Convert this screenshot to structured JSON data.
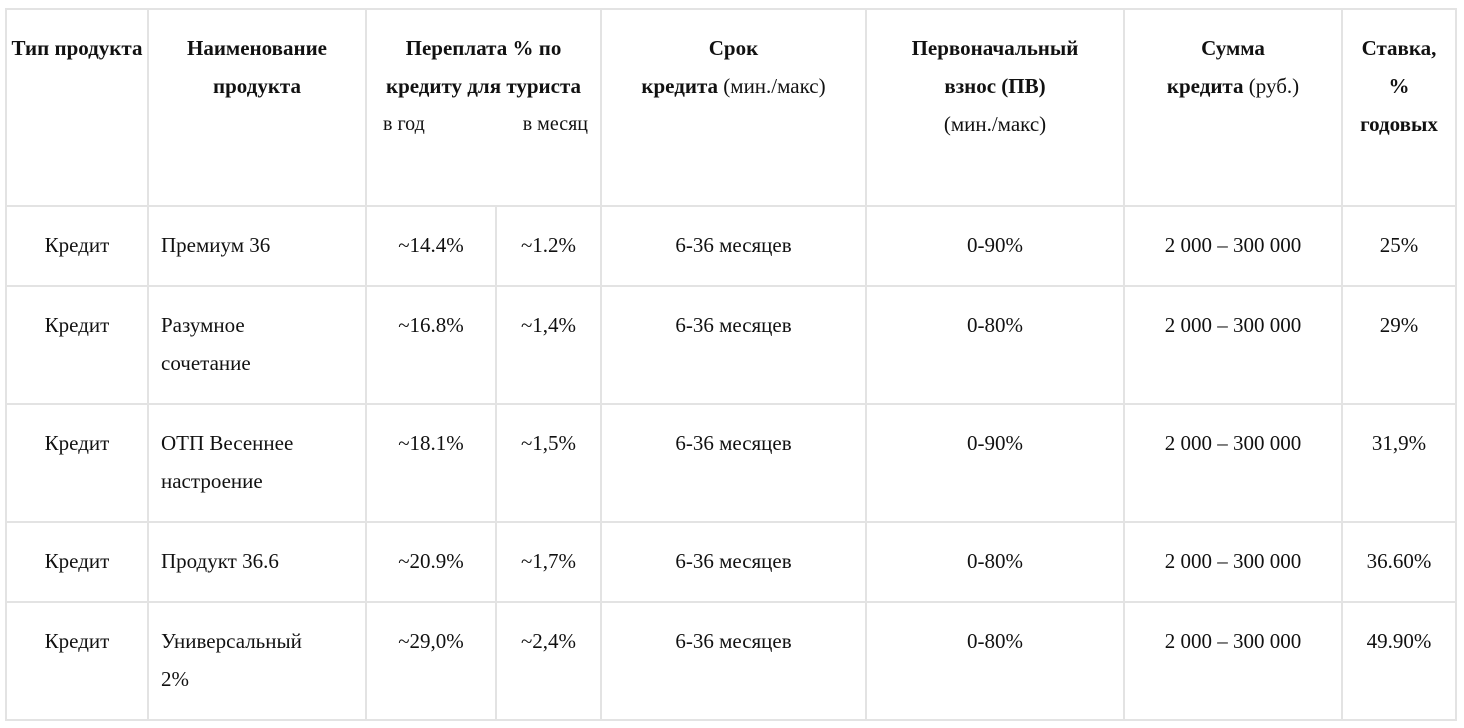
{
  "header": {
    "type": "Тип продукта",
    "name": "Наименование продукта",
    "overpay": "Переплата % по кредиту для туриста",
    "overpay_year": "в год",
    "overpay_month": "в месяц",
    "term_bold": "Срок",
    "term_bold2": "кредита",
    "term_normal": "(мин./макс)",
    "down_bold": "Первоначальный взнос (ПВ)",
    "down_normal": "(мин./макс)",
    "sum_bold": "Сумма",
    "sum_bold2": "кредита",
    "sum_normal": "(руб.)",
    "rate": "Ставка, % годовых"
  },
  "rows": [
    {
      "type": "Кредит",
      "name": "Премиум 36",
      "year": "~14.4%",
      "month": "~1.2%",
      "term": "6-36 месяцев",
      "down": "0-90%",
      "sum": "2 000 – 300 000",
      "rate": "25%"
    },
    {
      "type": "Кредит",
      "name": "Разумное сочетание",
      "year": "~16.8%",
      "month": "~1,4%",
      "term": "6-36 месяцев",
      "down": "0-80%",
      "sum": "2 000 – 300 000",
      "rate": "29%"
    },
    {
      "type": "Кредит",
      "name": "ОТП Весеннее настроение",
      "year": "~18.1%",
      "month": "~1,5%",
      "term": "6-36 месяцев",
      "down": "0-90%",
      "sum": "2 000 – 300 000",
      "rate": "31,9%"
    },
    {
      "type": "Кредит",
      "name": "Продукт 36.6",
      "year": "~20.9%",
      "month": "~1,7%",
      "term": "6-36 месяцев",
      "down": "0-80%",
      "sum": "2 000 – 300 000",
      "rate": "36.60%"
    },
    {
      "type": "Кредит",
      "name": "Универсальный 2%",
      "year": "~29,0%",
      "month": "~2,4%",
      "term": "6-36 месяцев",
      "down": "0-80%",
      "sum": "2 000 – 300 000",
      "rate": "49.90%"
    }
  ]
}
